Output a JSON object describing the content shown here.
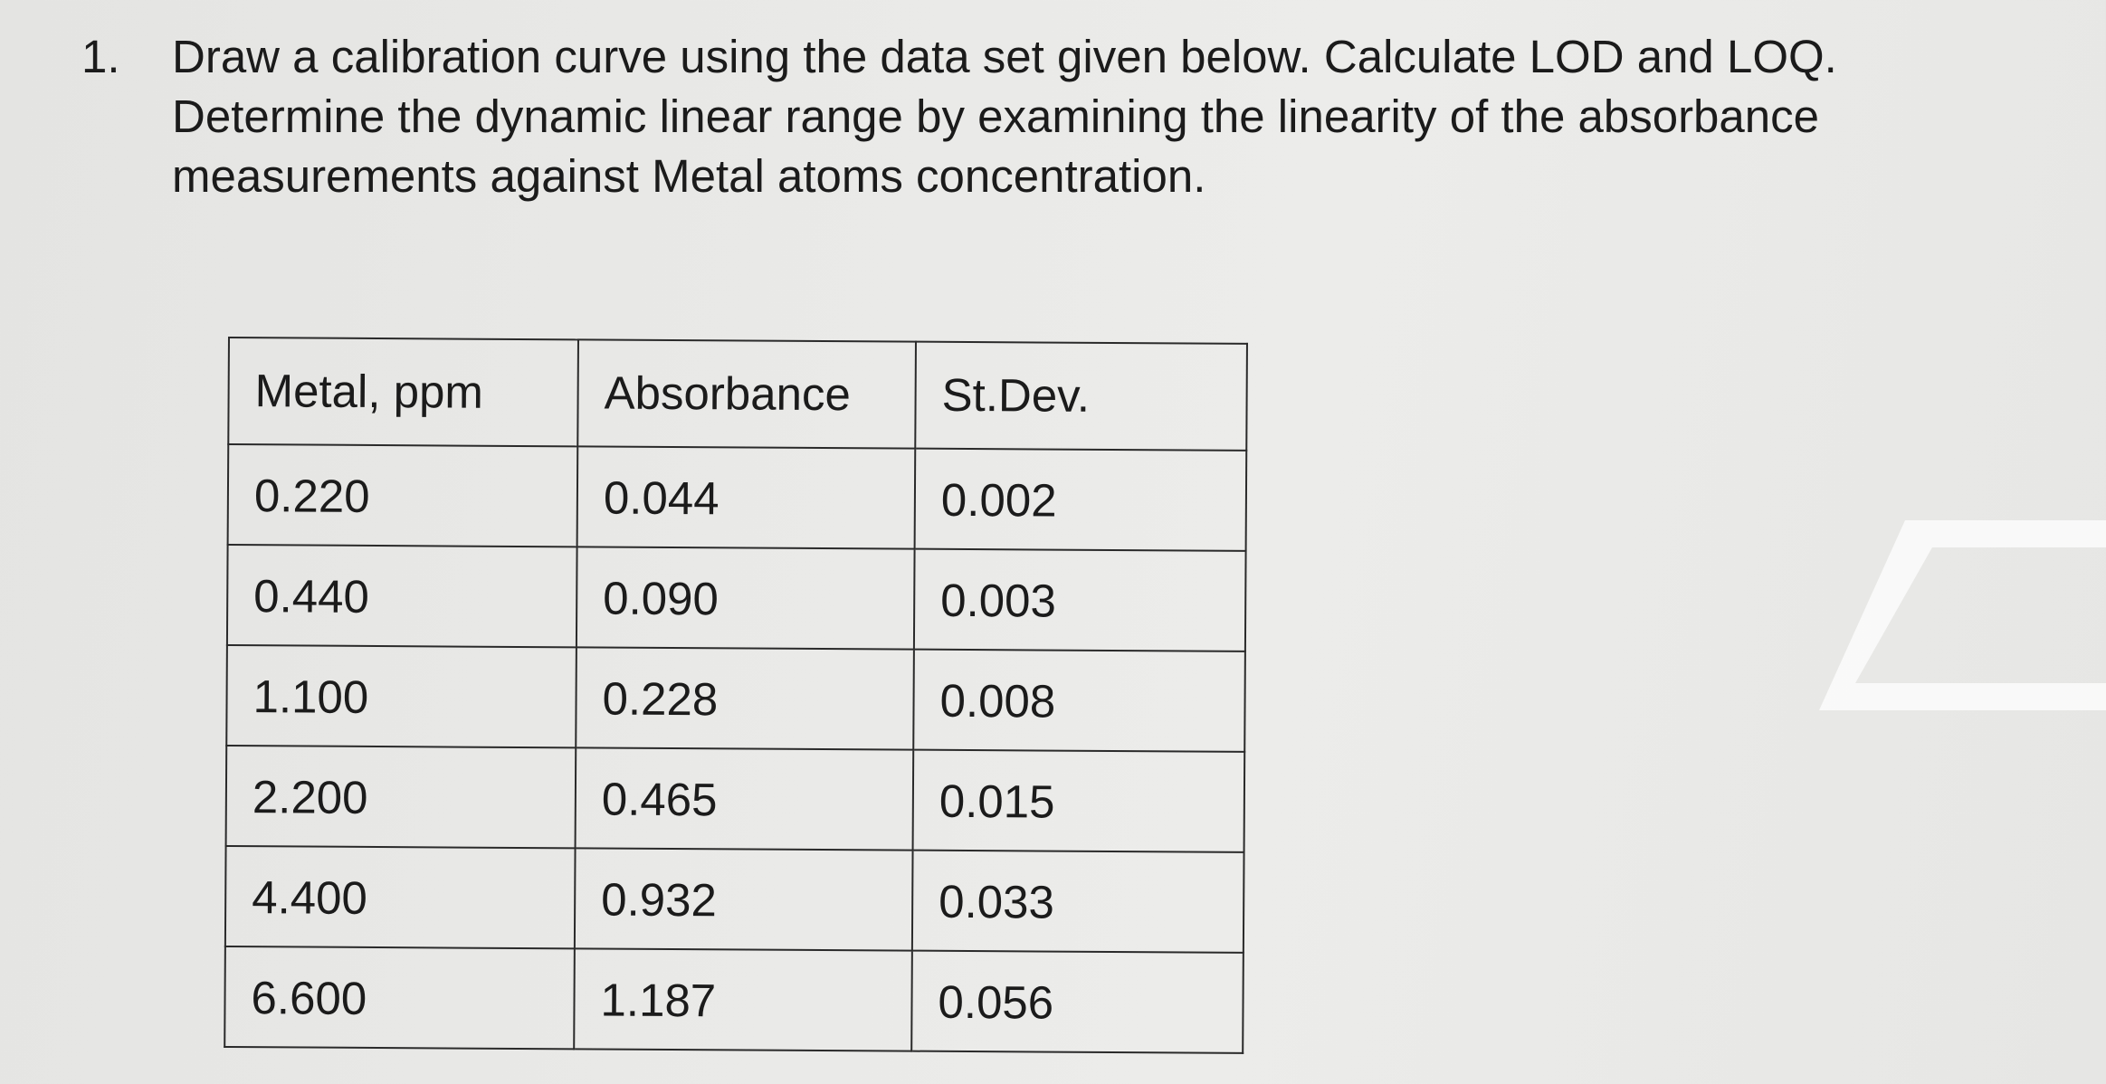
{
  "question": {
    "number": "1.",
    "lines": [
      "Draw a calibration curve using the data set given below. Calculate LOD and LOQ.",
      "Determine the dynamic linear range by examining the linearity of the absorbance",
      "measurements against Metal atoms concentration."
    ]
  },
  "table": {
    "headers": [
      "Metal, ppm",
      "Absorbance",
      "St.Dev."
    ],
    "rows": [
      [
        "0.220",
        "0.044",
        "0.002"
      ],
      [
        "0.440",
        "0.090",
        "0.003"
      ],
      [
        "1.100",
        "0.228",
        "0.008"
      ],
      [
        "2.200",
        "0.465",
        "0.015"
      ],
      [
        "4.400",
        "0.932",
        "0.033"
      ],
      [
        "6.600",
        "1.187",
        "0.056"
      ]
    ]
  }
}
